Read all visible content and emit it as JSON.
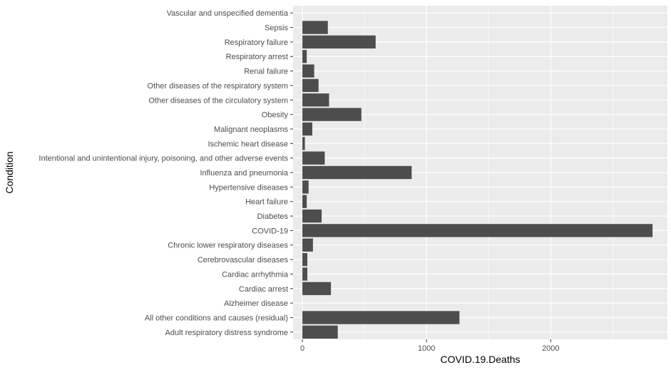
{
  "chart_data": {
    "type": "bar",
    "orientation": "horizontal",
    "title": "",
    "xlabel": "COVID.19.Deaths",
    "ylabel": "Condition",
    "xlim": [
      -75,
      2940
    ],
    "xticks": [
      0,
      1000,
      2000
    ],
    "grid": true,
    "categories": [
      "Vascular and unspecified dementia",
      "Sepsis",
      "Respiratory failure",
      "Respiratory arrest",
      "Renal failure",
      "Other diseases of the respiratory system",
      "Other diseases of the circulatory system",
      "Obesity",
      "Malignant neoplasms",
      "Ischemic heart disease",
      "Intentional and unintentional injury, poisoning, and other adverse events",
      "Influenza and pneumonia",
      "Hypertensive diseases",
      "Heart failure",
      "Diabetes",
      "COVID-19",
      "Chronic lower respiratory diseases",
      "Cerebrovascular diseases",
      "Cardiac arrhythmia",
      "Cardiac arrest",
      "Alzheimer disease",
      "All other conditions and causes (residual)",
      "Adult respiratory distress syndrome"
    ],
    "values": [
      0,
      205,
      590,
      35,
      95,
      130,
      215,
      475,
      80,
      20,
      180,
      880,
      50,
      35,
      155,
      2820,
      85,
      40,
      40,
      230,
      0,
      1265,
      285
    ],
    "bar_color": "#4d4d4d",
    "panel_color": "#ebebeb",
    "grid_color": "#ffffff"
  }
}
